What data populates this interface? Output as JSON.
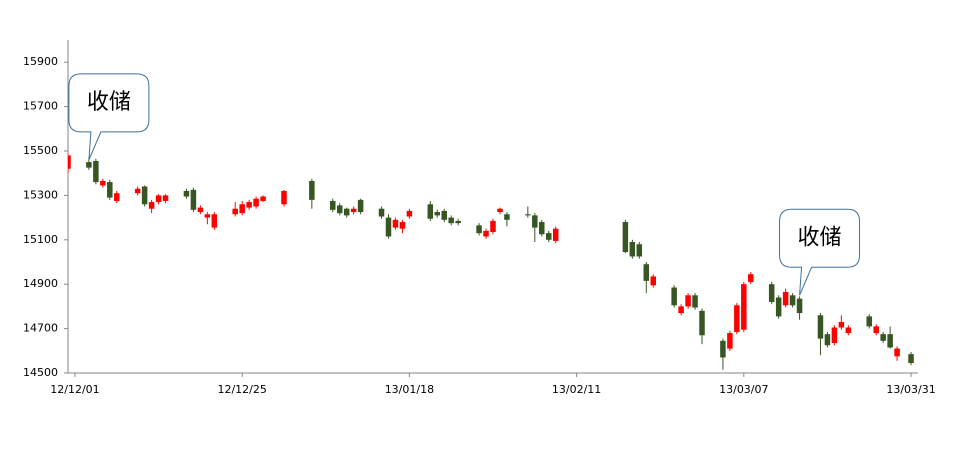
{
  "chart_data": {
    "type": "candlestick",
    "x": [
      -1,
      2,
      3,
      4,
      5,
      6,
      9,
      10,
      11,
      12,
      13,
      16,
      17,
      18,
      19,
      20,
      23,
      24,
      25,
      26,
      27,
      30,
      34,
      37,
      38,
      39,
      40,
      41,
      44,
      45,
      46,
      47,
      48,
      51,
      52,
      53,
      54,
      55,
      58,
      59,
      60,
      61,
      62,
      65,
      66,
      67,
      68,
      69,
      79,
      80,
      81,
      82,
      83,
      86,
      87,
      88,
      89,
      90,
      93,
      94,
      95,
      96,
      97,
      100,
      101,
      102,
      103,
      104,
      107,
      108,
      109,
      110,
      111,
      114,
      115,
      116,
      117,
      118,
      120
    ],
    "open": [
      15420,
      15450,
      15455,
      15345,
      15360,
      15275,
      15310,
      15340,
      15240,
      15270,
      15275,
      15320,
      15325,
      15225,
      15200,
      15155,
      15215,
      15220,
      15245,
      15250,
      15275,
      15260,
      15365,
      15275,
      15255,
      15240,
      15225,
      15280,
      15240,
      15200,
      15155,
      15150,
      15205,
      15260,
      15225,
      15230,
      15200,
      15185,
      15165,
      15115,
      15135,
      15225,
      15215,
      15215,
      15210,
      15180,
      15130,
      15095,
      15180,
      15090,
      15080,
      14990,
      14895,
      14885,
      14770,
      14800,
      14850,
      14780,
      14645,
      14610,
      14685,
      14695,
      14910,
      14900,
      14840,
      14805,
      14850,
      14835,
      14760,
      14675,
      14635,
      14705,
      14680,
      14755,
      14680,
      14675,
      14675,
      14575,
      14585
    ],
    "high": [
      15490,
      15470,
      15465,
      15375,
      15370,
      15320,
      15340,
      15345,
      15280,
      15305,
      15305,
      15330,
      15335,
      15255,
      15225,
      15225,
      15270,
      15275,
      15280,
      15295,
      15300,
      15325,
      15375,
      15285,
      15265,
      15245,
      15250,
      15285,
      15250,
      15215,
      15200,
      15190,
      15240,
      15275,
      15235,
      15240,
      15210,
      15195,
      15175,
      15150,
      15195,
      15245,
      15225,
      15250,
      15220,
      15190,
      15140,
      15160,
      15190,
      15100,
      15090,
      15000,
      14945,
      14895,
      14810,
      14860,
      14860,
      14790,
      14655,
      14690,
      14815,
      14910,
      14955,
      14910,
      14850,
      14880,
      14860,
      14845,
      14770,
      14685,
      14715,
      14760,
      14715,
      14765,
      14720,
      14685,
      14710,
      14620,
      14595
    ],
    "low": [
      15400,
      15415,
      15350,
      15335,
      15280,
      15265,
      15300,
      15250,
      15220,
      15260,
      15265,
      15285,
      15225,
      15215,
      15170,
      15145,
      15205,
      15210,
      15235,
      15240,
      15270,
      15250,
      15240,
      15225,
      15210,
      15200,
      15215,
      15215,
      15195,
      15105,
      15145,
      15130,
      15195,
      15185,
      15200,
      15180,
      15165,
      15165,
      15120,
      15105,
      15125,
      15215,
      15160,
      15200,
      15090,
      15115,
      15090,
      15085,
      15040,
      15015,
      15015,
      14860,
      14885,
      14795,
      14760,
      14790,
      14785,
      14630,
      14515,
      14600,
      14675,
      14685,
      14900,
      14810,
      14745,
      14795,
      14795,
      14740,
      14580,
      14615,
      14625,
      14695,
      14670,
      14700,
      14670,
      14635,
      14610,
      14555,
      14535
    ],
    "close": [
      15480,
      15425,
      15360,
      15365,
      15290,
      15310,
      15330,
      15260,
      15270,
      15300,
      15300,
      15295,
      15235,
      15245,
      15215,
      15215,
      15240,
      15260,
      15270,
      15285,
      15295,
      15320,
      15280,
      15235,
      15220,
      15210,
      15240,
      15225,
      15205,
      15115,
      15190,
      15180,
      15230,
      15195,
      15210,
      15190,
      15175,
      15175,
      15130,
      15140,
      15185,
      15240,
      15190,
      15210,
      15155,
      15125,
      15100,
      15150,
      15045,
      15025,
      15025,
      14915,
      14935,
      14805,
      14800,
      14850,
      14795,
      14670,
      14570,
      14680,
      14805,
      14900,
      14945,
      14820,
      14755,
      14865,
      14805,
      14770,
      14655,
      14625,
      14705,
      14730,
      14705,
      14710,
      14710,
      14645,
      14615,
      14610,
      14545
    ],
    "up_color": "#ff0000",
    "down_color": "#375623",
    "xlim": [
      -1,
      121
    ],
    "xticks": [
      {
        "value": 0,
        "label": "12/12/01"
      },
      {
        "value": 24,
        "label": "12/12/25"
      },
      {
        "value": 48,
        "label": "13/01/18"
      },
      {
        "value": 72,
        "label": "13/02/11"
      },
      {
        "value": 96,
        "label": "13/03/07"
      },
      {
        "value": 120,
        "label": "13/03/31"
      }
    ],
    "ylim": [
      14500,
      16000
    ],
    "yticks": [
      14500,
      14700,
      14900,
      15100,
      15300,
      15500,
      15700,
      15900
    ],
    "annotations": [
      {
        "text": "收储",
        "x": 2,
        "y": 15460
      },
      {
        "text": "收储",
        "x": 104,
        "y": 14850
      }
    ]
  }
}
